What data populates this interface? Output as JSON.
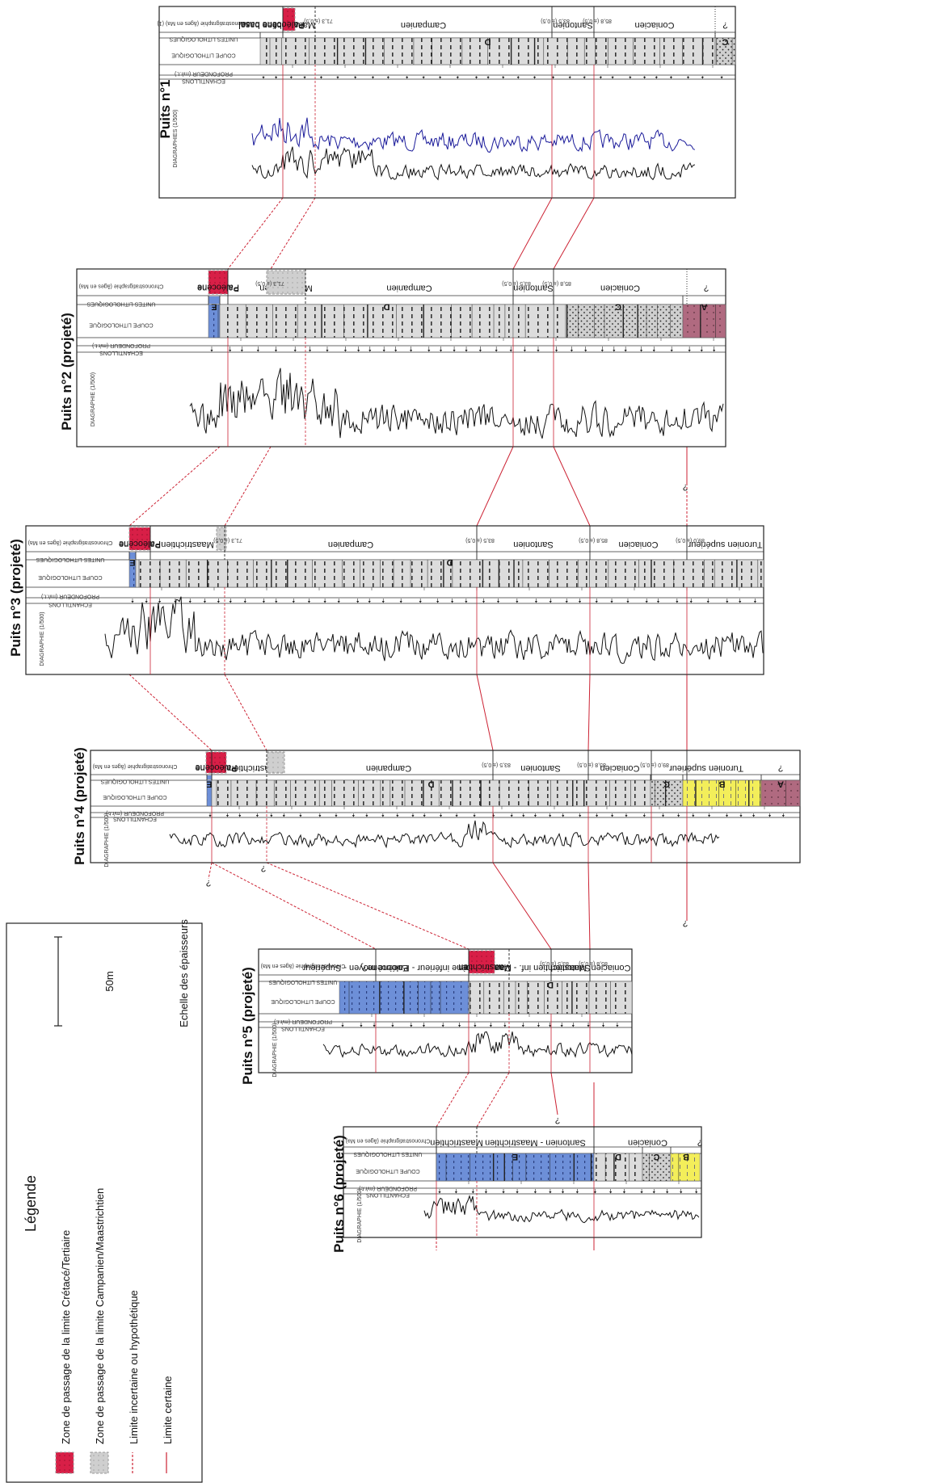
{
  "figure": {
    "header_labels": {
      "chrono": "Chronostratigraphie (âges en Ma)",
      "chrono_w1": "Chronostratigraphie (âges en Ma) (1)",
      "unites": "UNITES LITHOLOGIQUES",
      "coupe": "COUPE LITHOLOGIQUE",
      "profondeur": "PROFONDEUR (m/r.t.)",
      "echantillons": "ECHANTILLONS",
      "diagraphie": "DIAGRAPHIE (1/500)",
      "diagraphies": "DIAGRAPHIES (1/500)"
    },
    "boundary_ages": {
      "cm": "71,3 (± 0,5)",
      "cs": "83,5 (± 0,5)",
      "sc": "85,8 (± 0,5)",
      "ct": "89,0 (± 0,5)"
    },
    "question_mark": "?",
    "wells": [
      {
        "title": "Puits n°1",
        "stages": [
          "Paléocène basal",
          "Maastrichtien",
          "Campanien",
          "Santonien",
          "Coniacien",
          "?"
        ],
        "units": [
          "D",
          "C"
        ]
      },
      {
        "title": "Puits n°2 (projeté)",
        "stages": [
          "Paléocène",
          "Maastrichtien",
          "Campanien",
          "Santonien",
          "Coniacien",
          "?"
        ],
        "units": [
          "E",
          "D",
          "C",
          "A"
        ]
      },
      {
        "title": "Puits n°3 (projeté)",
        "stages": [
          "Paléocène",
          "Maastrichtien",
          "Campanien",
          "Santonien",
          "Coniacien",
          "Turonien supérieur"
        ],
        "units": [
          "E",
          "D"
        ]
      },
      {
        "title": "Puits n°4 (projeté)",
        "stages": [
          "Paléocène",
          "Maastrichtien",
          "Campanien",
          "Santonien",
          "Coniacien",
          "Turonien supérieur",
          "?"
        ],
        "units": [
          "E",
          "D",
          "C",
          "B",
          "A"
        ]
      },
      {
        "title": "Puits n°5 (projeté)",
        "stages": [
          "Eocène moyen - Supérieur",
          "Eocène inférieur - Paléocène?",
          "Maastrichtien",
          "Maastrichtien inf. - Campanien",
          "Santonien",
          "Coniacien"
        ],
        "units": [
          "D"
        ]
      },
      {
        "title": "Puits n°6 (projeté)",
        "stages": [
          "Maastrichtien",
          "Santonien - Maastrichtien",
          "Coniacien",
          "?"
        ],
        "units": [
          "E",
          "D",
          "C",
          "B"
        ]
      }
    ],
    "legend": {
      "title": "Légende",
      "items": [
        "Zone de passage de la limite Crétacé/Tertiaire",
        "Zone de passage de la limite Campanien/Maastrichtien",
        "Limite incertaine ou hypothétique",
        "Limite certaine"
      ],
      "scale_value": "50m",
      "scale_caption": "Echelle des épaisseurs"
    },
    "colors": {
      "kt_zone": "#d81f47",
      "cm_zone": "#c8c8c8",
      "calc": "#d9d9d9",
      "blue": "#6d8fd8",
      "yellow": "#f3ee5a",
      "mauve": "#b06a80",
      "log_blue": "#1a1a9a",
      "correlation": "#cc2233"
    }
  }
}
